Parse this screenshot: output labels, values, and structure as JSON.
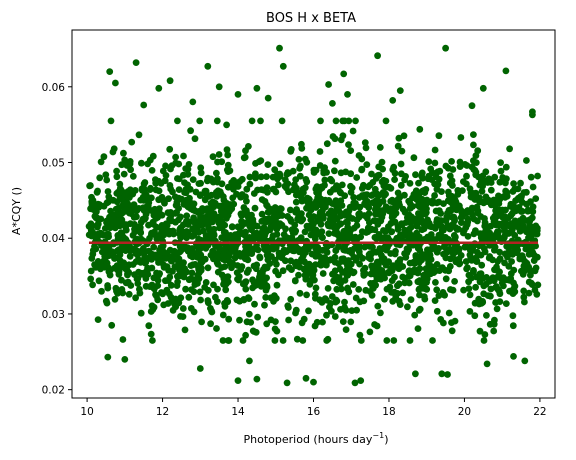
{
  "chart_data": {
    "type": "scatter",
    "title": "BOS H x BETA",
    "xlabel": "Photoperiod (hours day",
    "xlabel_sup": "−1",
    "xlabel_close": ")",
    "ylabel": "A*CQY ()",
    "xlim": [
      9.6,
      22.4
    ],
    "ylim": [
      0.0189,
      0.0675
    ],
    "xticks": [
      10,
      12,
      14,
      16,
      18,
      20,
      22
    ],
    "yticks": [
      0.02,
      0.03,
      0.04,
      0.05,
      0.06
    ],
    "xtick_labels": [
      "10",
      "12",
      "14",
      "16",
      "18",
      "20",
      "22"
    ],
    "ytick_labels": [
      "0.02",
      "0.03",
      "0.04",
      "0.05",
      "0.06"
    ],
    "grid": false,
    "point_color": "#006400",
    "trend_color": "#b22222",
    "trend_line": {
      "x": [
        10.05,
        21.95
      ],
      "y": [
        0.0394,
        0.0394
      ]
    },
    "core": {
      "x_range": [
        10.05,
        21.95
      ],
      "y_range": [
        0.0265,
        0.0555
      ]
    },
    "outliers": {
      "x": [
        11.3,
        12.2,
        13.2,
        15.1,
        15.2,
        16.8,
        17.7,
        19.5,
        21.1,
        10.6,
        10.75,
        11.9,
        13.5,
        14.0,
        14.5,
        16.4,
        16.9,
        18.3,
        20.5,
        21.8,
        21.8,
        10.55,
        11.0,
        13.0,
        14.0,
        14.3,
        14.5,
        15.3,
        15.8,
        16.0,
        17.1,
        17.25,
        18.7,
        19.4,
        19.55,
        20.6,
        21.3,
        10.2,
        11.5,
        12.8,
        14.8,
        16.5,
        18.1,
        20.2,
        21.6
      ],
      "y": [
        0.0632,
        0.0608,
        0.0627,
        0.0651,
        0.0627,
        0.0617,
        0.0641,
        0.0651,
        0.0621,
        0.062,
        0.0605,
        0.0598,
        0.06,
        0.059,
        0.0598,
        0.0603,
        0.059,
        0.0595,
        0.0598,
        0.0567,
        0.0563,
        0.0243,
        0.024,
        0.0228,
        0.0212,
        0.0238,
        0.0214,
        0.0209,
        0.0215,
        0.021,
        0.0209,
        0.0212,
        0.0221,
        0.0221,
        0.022,
        0.0234,
        0.0244,
        0.0365,
        0.0576,
        0.058,
        0.0585,
        0.0578,
        0.0582,
        0.0575,
        0.0238
      ]
    }
  }
}
